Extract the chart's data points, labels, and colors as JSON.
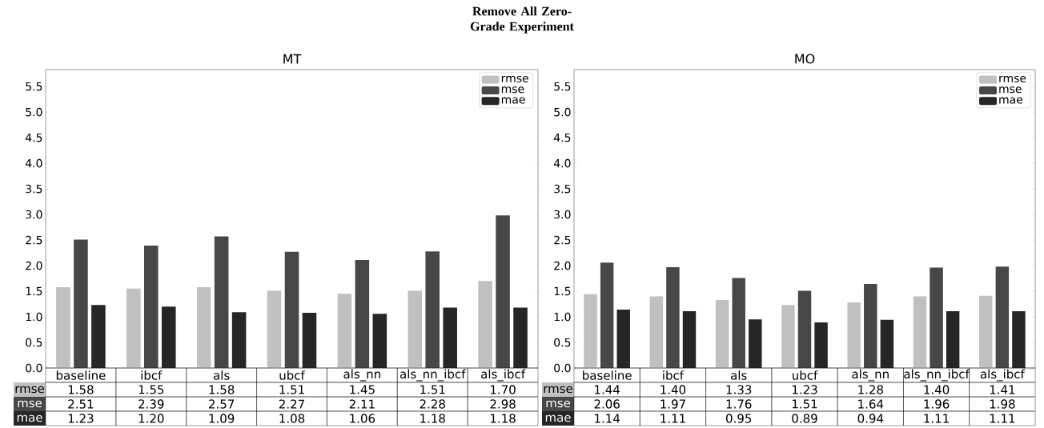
{
  "chart_data": [
    {
      "type": "bar",
      "title": "MT",
      "annotations": [
        "Remove All Zero-Grade Experiment"
      ],
      "categories": [
        "baseline",
        "ibcf",
        "als",
        "ubcf",
        "als_nn",
        "als_nn_ibcf",
        "als_ibcf"
      ],
      "series": [
        {
          "name": "rmse",
          "color": "#c0c0c0",
          "values": [
            1.58,
            1.55,
            1.58,
            1.51,
            1.45,
            1.51,
            1.7
          ],
          "value_labels": [
            "1.58",
            "1.55",
            "1.58",
            "1.51",
            "1.45",
            "1.51",
            "1.70"
          ]
        },
        {
          "name": "mse",
          "color": "#474747",
          "values": [
            2.51,
            2.39,
            2.57,
            2.27,
            2.11,
            2.28,
            2.98
          ],
          "value_labels": [
            "2.51",
            "2.39",
            "2.57",
            "2.27",
            "2.11",
            "2.28",
            "2.98"
          ]
        },
        {
          "name": "mae",
          "color": "#262626",
          "values": [
            1.23,
            1.2,
            1.09,
            1.08,
            1.06,
            1.18,
            1.18
          ],
          "value_labels": [
            "1.23",
            "1.20",
            "1.09",
            "1.08",
            "1.06",
            "1.18",
            "1.18"
          ]
        }
      ],
      "ylim": [
        0,
        5.83
      ],
      "yticks": [
        {
          "value": 0,
          "label": "0.0"
        },
        {
          "value": 0.5,
          "label": "0.5"
        },
        {
          "value": 1,
          "label": "1.0"
        },
        {
          "value": 1.5,
          "label": "1.5"
        },
        {
          "value": 2,
          "label": "2.0"
        },
        {
          "value": 2.5,
          "label": "2.5"
        },
        {
          "value": 3,
          "label": "3.0"
        },
        {
          "value": 3.5,
          "label": "3.5"
        },
        {
          "value": 4,
          "label": "4.0"
        },
        {
          "value": 4.5,
          "label": "4.5"
        },
        {
          "value": 5,
          "label": "5.0"
        },
        {
          "value": 5.5,
          "label": "5.5"
        }
      ],
      "legend": "top right",
      "grid": false
    },
    {
      "type": "bar",
      "title": "MO",
      "categories": [
        "baseline",
        "ibcf",
        "als",
        "ubcf",
        "als_nn",
        "als_nn_ibcf",
        "als_ibcf"
      ],
      "series": [
        {
          "name": "rmse",
          "color": "#c0c0c0",
          "values": [
            1.44,
            1.4,
            1.33,
            1.23,
            1.28,
            1.4,
            1.41
          ],
          "value_labels": [
            "1.44",
            "1.40",
            "1.33",
            "1.23",
            "1.28",
            "1.40",
            "1.41"
          ]
        },
        {
          "name": "mse",
          "color": "#474747",
          "values": [
            2.06,
            1.97,
            1.76,
            1.51,
            1.64,
            1.96,
            1.98
          ],
          "value_labels": [
            "2.06",
            "1.97",
            "1.76",
            "1.51",
            "1.64",
            "1.96",
            "1.98"
          ]
        },
        {
          "name": "mae",
          "color": "#262626",
          "values": [
            1.14,
            1.11,
            0.95,
            0.89,
            0.94,
            1.11,
            1.11
          ],
          "value_labels": [
            "1.14",
            "1.11",
            "0.95",
            "0.89",
            "0.94",
            "1.11",
            "1.11"
          ]
        }
      ],
      "ylim": [
        0,
        5.83
      ],
      "yticks": [
        {
          "value": 0,
          "label": "0.0"
        },
        {
          "value": 0.5,
          "label": "0.5"
        },
        {
          "value": 1,
          "label": "1.0"
        },
        {
          "value": 1.5,
          "label": "1.5"
        },
        {
          "value": 2,
          "label": "2.0"
        },
        {
          "value": 2.5,
          "label": "2.5"
        },
        {
          "value": 3,
          "label": "3.0"
        },
        {
          "value": 3.5,
          "label": "3.5"
        },
        {
          "value": 4,
          "label": "4.0"
        },
        {
          "value": 4.5,
          "label": "4.5"
        },
        {
          "value": 5,
          "label": "5.0"
        },
        {
          "value": 5.5,
          "label": "5.5"
        }
      ],
      "legend": "top right",
      "grid": false
    }
  ]
}
